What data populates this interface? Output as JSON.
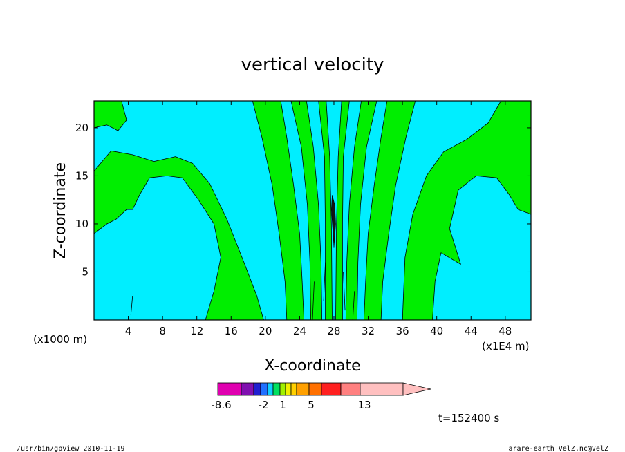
{
  "chart_data": {
    "type": "heatmap",
    "title": "vertical velocity",
    "xlabel": "X-coordinate",
    "ylabel": "Z-coordinate",
    "x_unit": "(x1E4 m)",
    "y_unit": "(x1000 m)",
    "xlim": [
      0,
      51
    ],
    "ylim": [
      0,
      22.8
    ],
    "x_ticks": [
      4,
      8,
      12,
      16,
      20,
      24,
      28,
      32,
      36,
      40,
      44,
      48
    ],
    "y_ticks": [
      5,
      10,
      15,
      20
    ],
    "colorbar": {
      "labels": [
        "-8.6",
        "-2",
        "1",
        "5",
        "13"
      ],
      "colors": [
        "#e000b0",
        "#8010b0",
        "#2020d0",
        "#2070ff",
        "#10d0ff",
        "#00e060",
        "#a0f000",
        "#f0f000",
        "#ffd000",
        "#ffa000",
        "#ff7000",
        "#ff2020",
        "#ff8080",
        "#ffc0c0"
      ]
    },
    "field_colors": {
      "negative": "#00eeff",
      "positive": "#00ee00"
    },
    "time_label": "t=152400 s",
    "footer_left": "/usr/bin/gpview   2010-11-19",
    "footer_right": "arare-earth_VelZ.nc@VelZ"
  }
}
